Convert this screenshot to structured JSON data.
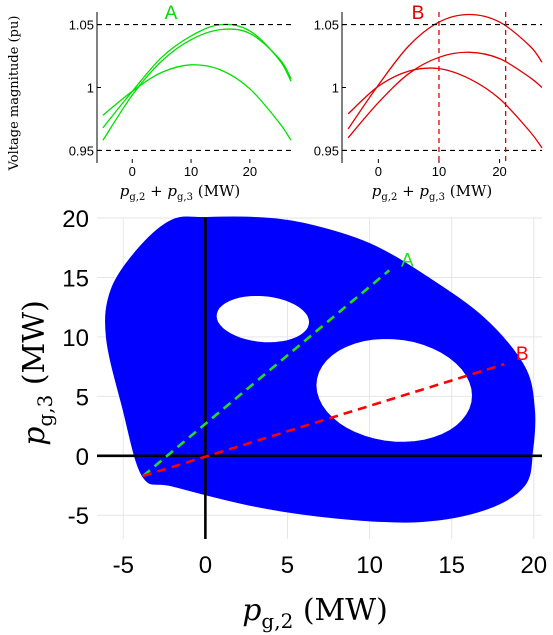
{
  "chart_data": [
    {
      "id": "A",
      "type": "line",
      "title": "A",
      "title_color": "#00e000",
      "line_color": "#00e000",
      "xlabel": "p_{g,2} + p_{g,3} (MW)",
      "ylabel": "Voltage magnitude (pu)",
      "xlim": [
        -6,
        27
      ],
      "ylim": [
        0.94,
        1.06
      ],
      "xticks": [
        0,
        10,
        20
      ],
      "yticks": [
        0.95,
        1,
        1.05
      ],
      "ytick_labels": [
        "0.95",
        "1",
        "1.05"
      ],
      "grid": false,
      "limits": [
        0.95,
        1.05
      ],
      "series": [
        {
          "x": [
            -5,
            0,
            5,
            10,
            15,
            20,
            25,
            27
          ],
          "y": [
            0.968,
            0.997,
            1.024,
            1.041,
            1.05,
            1.045,
            1.022,
            1.005
          ]
        },
        {
          "x": [
            -5,
            0,
            5,
            10,
            15,
            20,
            25,
            27
          ],
          "y": [
            0.958,
            0.994,
            1.021,
            1.038,
            1.046,
            1.043,
            1.023,
            1.007
          ]
        },
        {
          "x": [
            -5,
            0,
            5,
            10,
            15,
            20,
            25,
            27
          ],
          "y": [
            0.978,
            0.997,
            1.012,
            1.018,
            1.014,
            0.999,
            0.972,
            0.958
          ]
        }
      ]
    },
    {
      "id": "B",
      "type": "line",
      "title": "B",
      "title_color": "#e00000",
      "line_color": "#e00000",
      "xlabel": "p_{g,2} + p_{g,3} (MW)",
      "ylabel": "",
      "xlim": [
        -6,
        27
      ],
      "ylim": [
        0.94,
        1.06
      ],
      "xticks": [
        0,
        10,
        20
      ],
      "yticks": [
        0.95,
        1,
        1.05
      ],
      "ytick_labels": [
        "0.95",
        "1",
        "1.05"
      ],
      "grid": false,
      "limits": [
        0.95,
        1.05
      ],
      "markers_x": [
        10,
        21
      ],
      "series": [
        {
          "x": [
            -5,
            0,
            5,
            10,
            15,
            20,
            25,
            27
          ],
          "y": [
            0.967,
            1.002,
            1.033,
            1.052,
            1.058,
            1.052,
            1.033,
            1.02
          ]
        },
        {
          "x": [
            -5,
            0,
            5,
            10,
            15,
            20,
            25,
            27
          ],
          "y": [
            0.96,
            0.988,
            1.011,
            1.024,
            1.028,
            1.023,
            1.008,
            1.0
          ]
        },
        {
          "x": [
            -5,
            0,
            5,
            10,
            15,
            20,
            25,
            27
          ],
          "y": [
            0.979,
            1.001,
            1.013,
            1.015,
            1.007,
            0.991,
            0.965,
            0.952
          ]
        }
      ]
    },
    {
      "id": "main",
      "type": "area",
      "xlabel": "p_{g,2} (MW)",
      "ylabel": "p_{g,3} (MW)",
      "xlim": [
        -6.6,
        20.5
      ],
      "ylim": [
        -7,
        20
      ],
      "xticks": [
        -5,
        0,
        5,
        10,
        15,
        20
      ],
      "yticks": [
        -5,
        0,
        5,
        10,
        15,
        20
      ],
      "grid": true,
      "region_color": "#0000ff",
      "region_outline": [
        [
          -3.8,
          -1.7
        ],
        [
          -5.0,
          4.0
        ],
        [
          -6.0,
          10.0
        ],
        [
          -5.7,
          14.0
        ],
        [
          -4.0,
          17.5
        ],
        [
          -2.0,
          19.8
        ],
        [
          0.0,
          20.0
        ],
        [
          3.0,
          20.0
        ],
        [
          6.0,
          19.5
        ],
        [
          10.0,
          17.8
        ],
        [
          13.5,
          15.0
        ],
        [
          17.0,
          11.5
        ],
        [
          19.4,
          7.5
        ],
        [
          20.0,
          4.0
        ],
        [
          19.9,
          0.5
        ],
        [
          19.4,
          -2.5
        ],
        [
          17.0,
          -4.5
        ],
        [
          13.0,
          -5.5
        ],
        [
          8.0,
          -5.2
        ],
        [
          3.0,
          -4.2
        ],
        [
          -2.0,
          -2.5
        ]
      ],
      "holes": [
        {
          "cx": 3.5,
          "cy": 11.5,
          "rx": 2.9,
          "ry": 2.0,
          "angle_deg": -10
        },
        {
          "cx": 11.5,
          "cy": 5.5,
          "rx": 4.9,
          "ry": 4.3,
          "angle_deg": -25
        }
      ],
      "lines": [
        {
          "name": "A",
          "color": "#22dd22",
          "from": [
            -3.8,
            -1.7
          ],
          "to": [
            11.2,
            15.6
          ],
          "label": "A"
        },
        {
          "name": "B",
          "color": "#ff0000",
          "from": [
            -3.8,
            -1.7
          ],
          "to": [
            18.2,
            7.7
          ],
          "label": "B"
        }
      ]
    }
  ]
}
